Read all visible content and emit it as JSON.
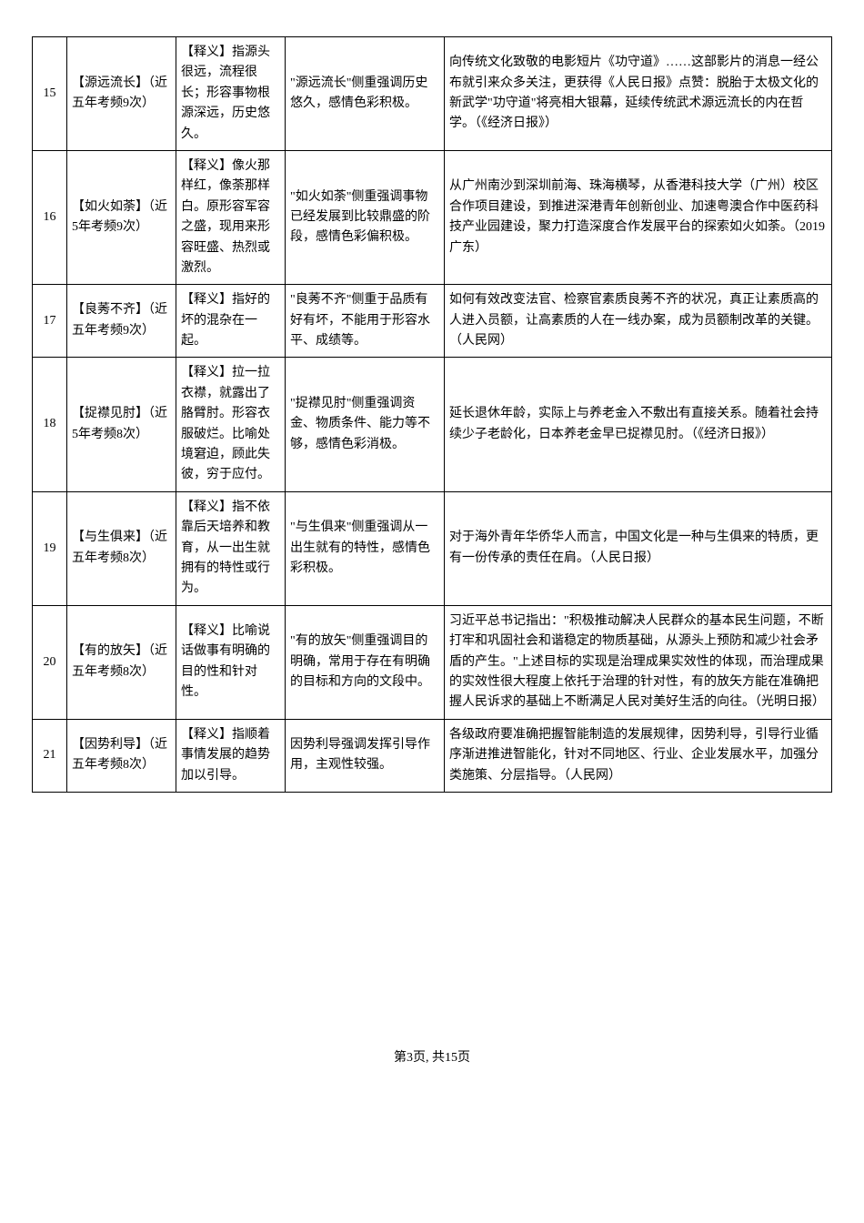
{
  "rows": [
    {
      "num": "15",
      "idiom": "【源远流长】（近五年考频9次）",
      "meaning": "【释义】指源头很远，流程很长；形容事物根源深远，历史悠久。",
      "usage": "\"源远流长\"侧重强调历史悠久，感情色彩积极。",
      "example": "向传统文化致敬的电影短片《功守道》……这部影片的消息一经公布就引来众多关注，更获得《人民日报》点赞：脱胎于太极文化的新武学\"功守道\"将亮相大银幕，延续传统武术源远流长的内在哲学。（《经济日报》）"
    },
    {
      "num": "16",
      "idiom": "【如火如荼】（近5年考频9次）",
      "meaning": "【释义】像火那样红，像荼那样白。原形容军容之盛，现用来形容旺盛、热烈或激烈。",
      "usage": "\"如火如荼\"侧重强调事物已经发展到比较鼎盛的阶段，感情色彩偏积极。",
      "example": "从广州南沙到深圳前海、珠海横琴，从香港科技大学（广州）校区合作项目建设，到推进深港青年创新创业、加速粤澳合作中医药科技产业园建设，聚力打造深度合作发展平台的探索如火如荼。（2019广东）"
    },
    {
      "num": "17",
      "idiom": "【良莠不齐】（近五年考频9次）",
      "meaning": "【释义】指好的坏的混杂在一起。",
      "usage": "\"良莠不齐\"侧重于品质有好有坏，不能用于形容水平、成绩等。",
      "example": "如何有效改变法官、检察官素质良莠不齐的状况，真正让素质高的人进入员额，让高素质的人在一线办案，成为员额制改革的关键。（人民网）"
    },
    {
      "num": "18",
      "idiom": "【捉襟见肘】（近5年考频8次）",
      "meaning": "【释义】拉一拉衣襟，就露出了胳臂肘。形容衣服破烂。比喻处境窘迫，顾此失彼，穷于应付。",
      "usage": "\"捉襟见肘\"侧重强调资金、物质条件、能力等不够，感情色彩消极。",
      "example": "延长退休年龄，实际上与养老金入不敷出有直接关系。随着社会持续少子老龄化，日本养老金早已捉襟见肘。（《经济日报》）"
    },
    {
      "num": "19",
      "idiom": "【与生俱来】（近五年考频8次）",
      "meaning": "【释义】指不依靠后天培养和教育，从一出生就拥有的特性或行为。",
      "usage": "\"与生俱来\"侧重强调从一出生就有的特性，感情色彩积极。",
      "example": "对于海外青年华侨华人而言，中国文化是一种与生俱来的特质，更有一份传承的责任在肩。（人民日报）"
    },
    {
      "num": "20",
      "idiom": "【有的放矢】（近五年考频8次）",
      "meaning": "【释义】比喻说话做事有明确的目的性和针对性。",
      "usage": "\"有的放矢\"侧重强调目的明确，常用于存在有明确的目标和方向的文段中。",
      "example": "习近平总书记指出：\"积极推动解决人民群众的基本民生问题，不断打牢和巩固社会和谐稳定的物质基础，从源头上预防和减少社会矛盾的产生。\"上述目标的实现是治理成果实效性的体现，而治理成果的实效性很大程度上依托于治理的针对性，有的放矢方能在准确把握人民诉求的基础上不断满足人民对美好生活的向往。（光明日报）"
    },
    {
      "num": "21",
      "idiom": "【因势利导】（近五年考频8次）",
      "meaning": "【释义】指顺着事情发展的趋势加以引导。",
      "usage": "因势利导强调发挥引导作用，主观性较强。",
      "example": "各级政府要准确把握智能制造的发展规律，因势利导，引导行业循序渐进推进智能化，针对不同地区、行业、企业发展水平，加强分类施策、分层指导。（人民网）"
    }
  ],
  "footer": "第3页, 共15页"
}
